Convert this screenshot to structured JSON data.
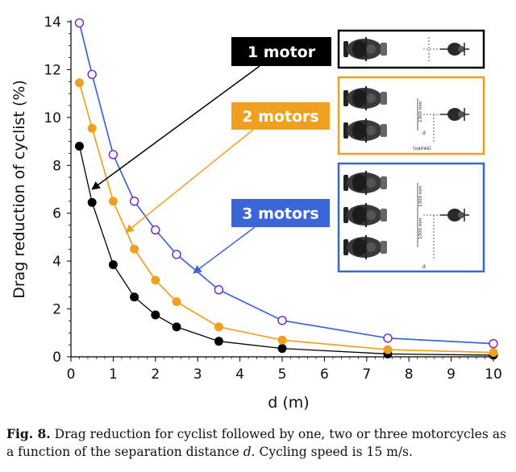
{
  "chart_data": {
    "type": "line",
    "xlabel": "d (m)",
    "ylabel": "Drag reduction of cyclist (%)",
    "xlim": [
      0,
      10
    ],
    "ylim": [
      0,
      14
    ],
    "x_ticks": [
      "0",
      "1",
      "2",
      "3",
      "4",
      "5",
      "6",
      "7",
      "8",
      "9",
      "10"
    ],
    "y_ticks": [
      "0",
      "2",
      "4",
      "6",
      "8",
      "10",
      "12",
      "14"
    ],
    "grid": false,
    "series": [
      {
        "name": "1 motor",
        "color": "#000000",
        "marker": "filled-circle",
        "x": [
          0.2,
          0.5,
          1.0,
          1.5,
          2.0,
          2.5,
          3.5,
          5.0,
          7.5,
          10.0
        ],
        "y": [
          8.8,
          6.45,
          3.85,
          2.5,
          1.75,
          1.25,
          0.65,
          0.35,
          0.12,
          0.07
        ]
      },
      {
        "name": "2 motors",
        "color": "#f0a020",
        "marker": "filled-circle",
        "x": [
          0.2,
          0.5,
          1.0,
          1.5,
          2.0,
          2.5,
          3.5,
          5.0,
          7.5,
          10.0
        ],
        "y": [
          11.45,
          9.55,
          6.5,
          4.5,
          3.2,
          2.3,
          1.25,
          0.7,
          0.3,
          0.18
        ]
      },
      {
        "name": "3 motors",
        "color": "#3a66d8",
        "marker": "open-circle",
        "x": [
          0.2,
          0.5,
          1.0,
          1.5,
          2.0,
          2.5,
          3.5,
          5.0,
          7.5,
          10.0
        ],
        "y": [
          13.95,
          11.8,
          8.45,
          6.5,
          5.3,
          4.28,
          2.8,
          1.52,
          0.78,
          0.55
        ]
      }
    ],
    "annotations": [
      {
        "text": "1 motor",
        "color": "#000000",
        "box_fill": "#000000",
        "text_color": "#ffffff",
        "arrow_to_series": 0,
        "arrow_target": {
          "x": 0.5,
          "y": 7.0
        }
      },
      {
        "text": "2 motors",
        "color": "#f0a020",
        "box_fill": "#f0a020",
        "text_color": "#ffffff",
        "arrow_to_series": 1,
        "arrow_target": {
          "x": 1.3,
          "y": 5.2
        }
      },
      {
        "text": "3 motors",
        "color": "#3a66d8",
        "box_fill": "#3a66d8",
        "text_color": "#ffffff",
        "arrow_to_series": 2,
        "arrow_target": {
          "x": 2.9,
          "y": 3.5
        }
      }
    ],
    "inset_diagrams": [
      {
        "motors": 1,
        "border_color": "#000000",
        "labels": []
      },
      {
        "motors": 2,
        "border_color": "#f0a020",
        "labels": [
          "1300 mm",
          "d",
          "(varies)"
        ]
      },
      {
        "motors": 3,
        "border_color": "#3a66d8",
        "labels": [
          "1300 mm",
          "1300 mm",
          "d"
        ]
      }
    ]
  },
  "caption": {
    "label": "Fig. 8.",
    "text_before": " Drag reduction for cyclist followed by one, two or three motorcycles as a function of the separation distance ",
    "italic": "d",
    "text_after": ". Cycling speed is 15 m/s."
  }
}
